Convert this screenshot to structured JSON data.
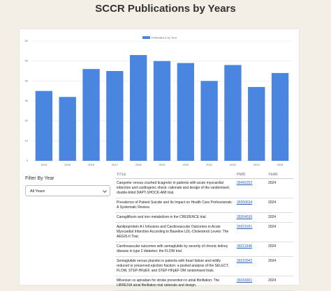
{
  "header": {
    "title": "SCCR Publications by Years"
  },
  "chart_data": {
    "type": "bar",
    "legend": "Publications by Year",
    "legend_position": "top",
    "categories": [
      "2014",
      "2015",
      "2016",
      "2017",
      "2018",
      "2019",
      "2020",
      "2021",
      "2022",
      "2023",
      "2024"
    ],
    "values": [
      35,
      32,
      46,
      45,
      53,
      50,
      49,
      40,
      48,
      37,
      44
    ],
    "color": "#4a86e0",
    "ylim": [
      0,
      60
    ],
    "yticks": [
      0,
      10,
      20,
      30,
      40,
      50,
      60
    ],
    "grid": true
  },
  "filter": {
    "label": "Filter By Year",
    "selected": "All Years"
  },
  "table": {
    "columns": [
      "TITLE",
      "PMID",
      "YEAR"
    ],
    "rows": [
      [
        "Cangrelor versus crushed ticagrelor in patients with acute myocardial infarction and cardiogenic shock: rationale and design of the randomised, double-blind DAPT-SHOCK-AMI trial.",
        "39492252",
        "2024"
      ],
      [
        "Prevalence of Patient Suicide and Its Impact on Health Care Professionals: A Systematic Review.",
        "39350634",
        "2024"
      ],
      [
        "Canagliflozin and iron metabolism in the CREDENCE trial.",
        "39304530",
        "2024"
      ],
      [
        "Apolipoprotein A-I Infusions and Cardiovascular Outcomes in Acute Myocardial Infarction According to Baseline LDL-Cholesterol Levels: The AEGIS-II Trial.",
        "39321651",
        "2024"
      ],
      [
        "Cardiovascular outcomes with semaglutide by severity of chronic kidney disease in type 2 diabetes: the FLOW trial.",
        "39211948",
        "2024"
      ],
      [
        "Semaglutide versus placebo in patients with heart failure and mildly reduced or preserved ejection fraction: a pooled analysis of the SELECT, FLOW, STEP-HFpEF, and STEP-HFpEF DM randomised trials.",
        "39222942",
        "2024"
      ],
      [
        "Milvexian vs apixaban for stroke prevention in atrial fibrillation: The LIBREXIA atrial fibrillation trial rationale and design.",
        "39241801",
        "2024"
      ]
    ]
  }
}
